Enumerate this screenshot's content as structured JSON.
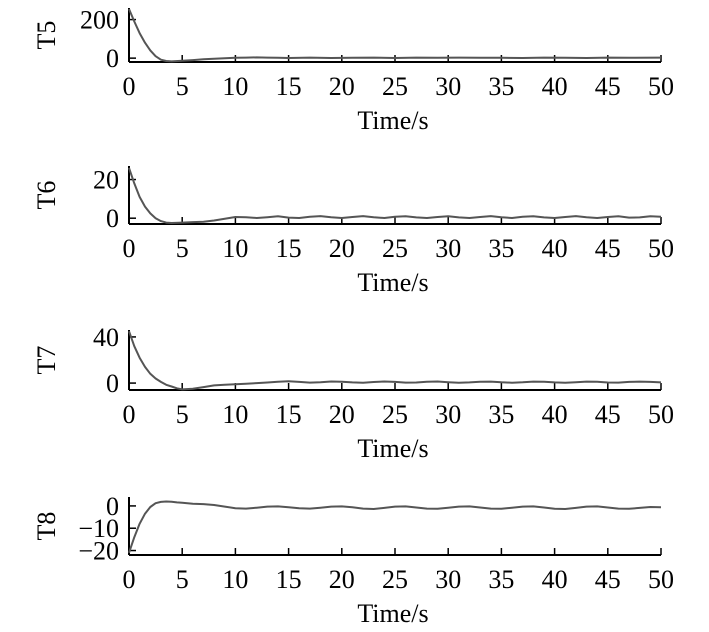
{
  "chart_data": [
    {
      "type": "line",
      "ylabel": "T5",
      "xlabel": "Time/s",
      "xlim": [
        0,
        50
      ],
      "ylim": [
        -20,
        260
      ],
      "xticks": [
        "0",
        "5",
        "10",
        "15",
        "20",
        "25",
        "30",
        "35",
        "40",
        "45",
        "50"
      ],
      "yticks": [
        {
          "value": 0,
          "label": "0"
        },
        {
          "value": 200,
          "label": "200"
        }
      ],
      "series": [
        {
          "x": [
            0,
            0.5,
            1,
            1.5,
            2,
            2.5,
            3,
            3.5,
            4,
            5,
            6,
            7,
            8,
            9,
            10,
            11,
            12,
            13,
            14,
            15,
            17,
            19,
            21,
            23,
            25,
            27,
            29,
            31,
            33,
            35,
            37,
            39,
            41,
            43,
            45,
            47,
            50
          ],
          "y": [
            255,
            190,
            130,
            80,
            40,
            10,
            -8,
            -15,
            -17,
            -14,
            -10,
            -6,
            -3,
            -1,
            2,
            3,
            4,
            3,
            2,
            1,
            3,
            1,
            2,
            3,
            1,
            3,
            2,
            3,
            2,
            2,
            1,
            3,
            2,
            1,
            3,
            2,
            3
          ]
        }
      ]
    },
    {
      "type": "line",
      "ylabel": "T6",
      "xlabel": "Time/s",
      "xlim": [
        0,
        50
      ],
      "ylim": [
        -3,
        27
      ],
      "xticks": [
        "0",
        "5",
        "10",
        "15",
        "20",
        "25",
        "30",
        "35",
        "40",
        "45",
        "50"
      ],
      "yticks": [
        {
          "value": 0,
          "label": "0"
        },
        {
          "value": 20,
          "label": "20"
        }
      ],
      "series": [
        {
          "x": [
            0,
            0.5,
            1,
            1.5,
            2,
            2.5,
            3,
            3.5,
            4,
            5,
            6,
            7,
            8,
            9,
            10,
            11,
            12,
            13,
            14,
            15,
            16,
            17,
            18,
            19,
            20,
            21,
            22,
            23,
            24,
            25,
            26,
            27,
            28,
            29,
            30,
            31,
            32,
            33,
            34,
            35,
            36,
            37,
            38,
            39,
            40,
            41,
            42,
            43,
            44,
            45,
            46,
            47,
            48,
            49,
            50
          ],
          "y": [
            26,
            18,
            11,
            6,
            2.5,
            0,
            -1.5,
            -2.3,
            -2.5,
            -2.3,
            -2,
            -1.8,
            -1.2,
            -0.3,
            0.6,
            0.5,
            0.1,
            0.5,
            1.0,
            0.3,
            0.1,
            0.8,
            1.1,
            0.5,
            0.1,
            0.6,
            1.1,
            0.5,
            0.1,
            0.8,
            1.0,
            0.4,
            0.1,
            0.6,
            1.0,
            0.4,
            0.1,
            0.6,
            1.1,
            0.5,
            0.1,
            0.8,
            1.0,
            0.4,
            0.1,
            0.6,
            1.1,
            0.5,
            0.1,
            0.6,
            1.0,
            0.3,
            0.4,
            1.0,
            0.8
          ]
        }
      ]
    },
    {
      "type": "line",
      "ylabel": "T7",
      "xlabel": "Time/s",
      "xlim": [
        0,
        50
      ],
      "ylim": [
        -6,
        46
      ],
      "xticks": [
        "0",
        "5",
        "10",
        "15",
        "20",
        "25",
        "30",
        "35",
        "40",
        "45",
        "50"
      ],
      "yticks": [
        {
          "value": 0,
          "label": "0"
        },
        {
          "value": 40,
          "label": "40"
        }
      ],
      "series": [
        {
          "x": [
            0,
            0.5,
            1,
            1.5,
            2,
            2.5,
            3,
            3.5,
            4,
            4.5,
            5,
            6,
            7,
            8,
            9,
            10,
            11,
            12,
            13,
            14,
            15,
            16,
            17,
            18,
            19,
            20,
            21,
            22,
            23,
            24,
            25,
            26,
            27,
            28,
            29,
            30,
            31,
            32,
            33,
            34,
            35,
            36,
            37,
            38,
            39,
            40,
            41,
            42,
            43,
            44,
            45,
            46,
            47,
            48,
            49,
            50
          ],
          "y": [
            45,
            32,
            22,
            14,
            8,
            4,
            1,
            -1.5,
            -3,
            -4.5,
            -5.5,
            -5,
            -3.5,
            -2,
            -1.5,
            -1,
            -0.5,
            0,
            0.5,
            1.2,
            1.5,
            1.0,
            0.4,
            0.8,
            1.4,
            1.2,
            0.6,
            0.3,
            0.9,
            1.4,
            1.0,
            0.4,
            0.5,
            1.2,
            1.4,
            0.8,
            0.3,
            0.6,
            1.2,
            1.3,
            0.7,
            0.3,
            0.7,
            1.3,
            1.2,
            0.6,
            0.3,
            0.8,
            1.3,
            1.1,
            0.5,
            0.4,
            1.0,
            1.3,
            1.0,
            0.6
          ]
        }
      ]
    },
    {
      "type": "line",
      "ylabel": "T8",
      "xlabel": "Time/s",
      "xlim": [
        0,
        50
      ],
      "ylim": [
        -22,
        4
      ],
      "xticks": [
        "0",
        "5",
        "10",
        "15",
        "20",
        "25",
        "30",
        "35",
        "40",
        "45",
        "50"
      ],
      "yticks": [
        {
          "value": 0,
          "label": "0"
        },
        {
          "value": -10,
          "label": "−10"
        },
        {
          "value": -20,
          "label": "−20"
        }
      ],
      "series": [
        {
          "x": [
            0,
            0.5,
            1,
            1.5,
            2,
            2.5,
            3,
            3.5,
            4,
            4.5,
            5,
            6,
            7,
            8,
            9,
            10,
            11,
            12,
            13,
            14,
            15,
            16,
            17,
            18,
            19,
            20,
            21,
            22,
            23,
            24,
            25,
            26,
            27,
            28,
            29,
            30,
            31,
            32,
            33,
            34,
            35,
            36,
            37,
            38,
            39,
            40,
            41,
            42,
            43,
            44,
            45,
            46,
            47,
            48,
            49,
            50
          ],
          "y": [
            -21,
            -14,
            -8,
            -3.5,
            -0.5,
            1.2,
            1.8,
            2.0,
            1.9,
            1.6,
            1.4,
            1.0,
            0.8,
            0.4,
            -0.3,
            -1.0,
            -1.2,
            -0.8,
            -0.3,
            -0.2,
            -0.6,
            -1.0,
            -1.2,
            -0.8,
            -0.3,
            -0.2,
            -0.6,
            -1.2,
            -1.4,
            -0.9,
            -0.3,
            -0.2,
            -0.7,
            -1.2,
            -1.3,
            -0.8,
            -0.3,
            -0.2,
            -0.7,
            -1.2,
            -1.3,
            -0.8,
            -0.3,
            -0.2,
            -0.7,
            -1.3,
            -1.4,
            -0.9,
            -0.3,
            -0.2,
            -0.7,
            -1.2,
            -1.3,
            -0.9,
            -0.5,
            -0.6
          ]
        }
      ]
    }
  ]
}
